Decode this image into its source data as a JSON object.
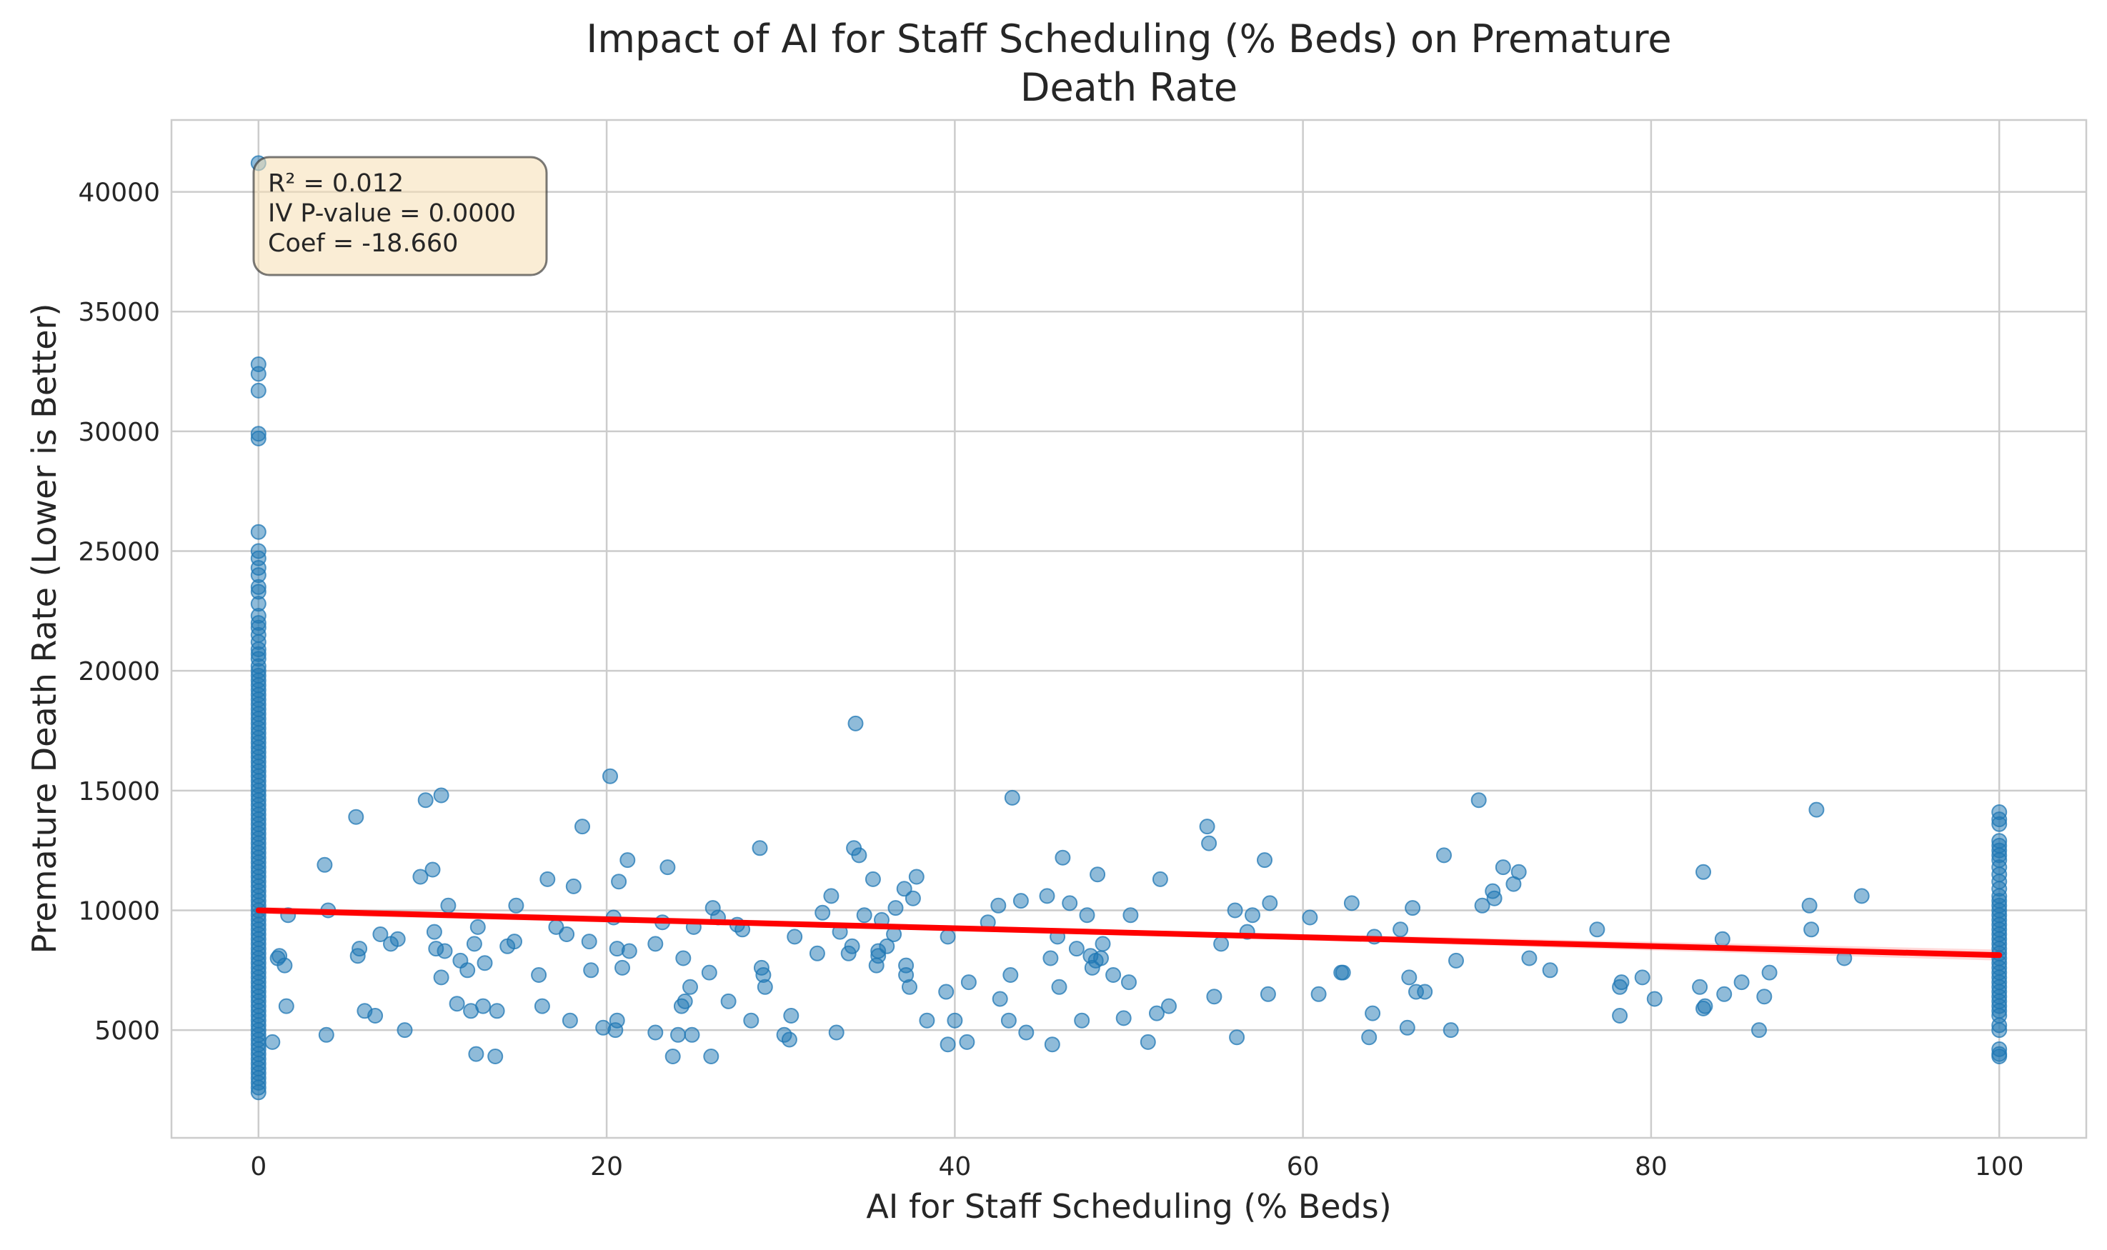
{
  "chart_data": {
    "type": "scatter",
    "title_lines": [
      "Impact of AI for Staff Scheduling (% Beds) on Premature",
      "Death Rate"
    ],
    "xlabel": "AI for Staff Scheduling (% Beds)",
    "ylabel": "Premature Death Rate (Lower is Better)",
    "xlim": [
      -5,
      105
    ],
    "ylim": [
      500,
      43000
    ],
    "xticks": [
      0,
      20,
      40,
      60,
      80,
      100
    ],
    "yticks": [
      5000,
      10000,
      15000,
      20000,
      25000,
      30000,
      35000,
      40000
    ],
    "grid": true,
    "stats_box": {
      "lines": [
        "R² = 0.012",
        "IV P-value = 0.0000",
        "Coef = -18.660"
      ],
      "placement": "top-left",
      "fill": "#f5deb3",
      "border": "#333333"
    },
    "colors": {
      "points": "#1f77b4",
      "fit_line": "#ff0000",
      "confidence_band": "#ff0000"
    },
    "fit_line": {
      "x": [
        0,
        100
      ],
      "y": [
        10000,
        8130
      ]
    },
    "confidence_band": {
      "x": [
        0,
        50,
        100
      ],
      "lower": [
        9850,
        8960,
        7900
      ],
      "upper": [
        10150,
        9180,
        8360
      ]
    },
    "series": [
      {
        "points_x0": [
          41200,
          32800,
          32400,
          31700,
          29900,
          29700,
          25800,
          25000,
          24700,
          24300,
          24000,
          23500,
          23300,
          22800,
          22300,
          22000,
          21800,
          21500,
          21200,
          20900,
          20700,
          20500,
          20200,
          20000,
          19800,
          19600,
          19400,
          19200,
          19000,
          18800,
          18600,
          18400,
          18200,
          18000,
          17800,
          17600,
          17400,
          17200,
          17000,
          16800,
          16600,
          16400,
          16200,
          16000,
          15800,
          15600,
          15400,
          15200,
          15000,
          14800,
          14600,
          14400,
          14200,
          14000,
          13800,
          13600,
          13400,
          13200,
          13000,
          12800,
          12600,
          12400,
          12200,
          12000,
          11800,
          11600,
          11400,
          11200,
          11000,
          10800,
          10600,
          10400,
          10200,
          10000,
          9800,
          9600,
          9400,
          9200,
          9000,
          8800,
          8600,
          8400,
          8200,
          8000,
          7800,
          7600,
          7400,
          7200,
          7000,
          6800,
          6600,
          6400,
          6200,
          6000,
          5800,
          5600,
          5400,
          5200,
          5000,
          4800,
          4600,
          4400,
          4200,
          4000,
          3800,
          3600,
          3400,
          3200,
          3000,
          2800,
          2600,
          2400
        ],
        "points_x100": [
          14100,
          13800,
          13600,
          12900,
          12700,
          12500,
          12300,
          12100,
          11800,
          11500,
          11200,
          10900,
          10600,
          10400,
          10200,
          10000,
          9800,
          9600,
          9400,
          9200,
          9000,
          8800,
          8600,
          8400,
          8200,
          8000,
          7800,
          7600,
          7400,
          7200,
          7000,
          6800,
          6600,
          6400,
          6200,
          6000,
          5800,
          5600,
          5200,
          5000,
          4200,
          4000,
          3900
        ],
        "points": [
          [
            0.8,
            4500
          ],
          [
            1.1,
            8000
          ],
          [
            1.2,
            8100
          ],
          [
            1.5,
            7700
          ],
          [
            1.6,
            6000
          ],
          [
            1.7,
            9800
          ],
          [
            3.8,
            11900
          ],
          [
            3.9,
            4800
          ],
          [
            4.0,
            10000
          ],
          [
            5.6,
            13900
          ],
          [
            5.7,
            8100
          ],
          [
            5.8,
            8400
          ],
          [
            6.1,
            5800
          ],
          [
            6.7,
            5600
          ],
          [
            7.0,
            9000
          ],
          [
            7.6,
            8600
          ],
          [
            8.0,
            8800
          ],
          [
            8.4,
            5000
          ],
          [
            9.3,
            11400
          ],
          [
            9.6,
            14600
          ],
          [
            10.0,
            11700
          ],
          [
            10.1,
            9100
          ],
          [
            10.2,
            8400
          ],
          [
            10.5,
            14800
          ],
          [
            10.5,
            7200
          ],
          [
            10.7,
            8300
          ],
          [
            10.9,
            10200
          ],
          [
            11.4,
            6100
          ],
          [
            11.6,
            7900
          ],
          [
            12.0,
            7500
          ],
          [
            12.2,
            5800
          ],
          [
            12.4,
            8600
          ],
          [
            12.5,
            4000
          ],
          [
            12.6,
            9300
          ],
          [
            12.9,
            6000
          ],
          [
            13.0,
            7800
          ],
          [
            13.6,
            3900
          ],
          [
            13.7,
            5800
          ],
          [
            14.3,
            8500
          ],
          [
            14.7,
            8700
          ],
          [
            14.8,
            10200
          ],
          [
            16.1,
            7300
          ],
          [
            16.3,
            6000
          ],
          [
            16.6,
            11300
          ],
          [
            17.1,
            9300
          ],
          [
            17.7,
            9000
          ],
          [
            17.9,
            5400
          ],
          [
            18.1,
            11000
          ],
          [
            18.6,
            13500
          ],
          [
            19.0,
            8700
          ],
          [
            19.1,
            7500
          ],
          [
            19.8,
            5100
          ],
          [
            20.2,
            15600
          ],
          [
            20.4,
            9700
          ],
          [
            20.5,
            5000
          ],
          [
            20.6,
            5400
          ],
          [
            20.6,
            8400
          ],
          [
            20.7,
            11200
          ],
          [
            20.9,
            7600
          ],
          [
            21.2,
            12100
          ],
          [
            21.3,
            8300
          ],
          [
            22.8,
            8600
          ],
          [
            22.8,
            4900
          ],
          [
            23.2,
            9500
          ],
          [
            23.5,
            11800
          ],
          [
            23.8,
            3900
          ],
          [
            24.1,
            4800
          ],
          [
            24.3,
            6000
          ],
          [
            24.4,
            8000
          ],
          [
            24.5,
            6200
          ],
          [
            24.8,
            6800
          ],
          [
            24.9,
            4800
          ],
          [
            25.0,
            9300
          ],
          [
            25.9,
            7400
          ],
          [
            26.0,
            3900
          ],
          [
            26.1,
            10100
          ],
          [
            26.4,
            9700
          ],
          [
            27.0,
            6200
          ],
          [
            27.5,
            9400
          ],
          [
            27.8,
            9200
          ],
          [
            28.3,
            5400
          ],
          [
            28.8,
            12600
          ],
          [
            28.9,
            7600
          ],
          [
            29.0,
            7300
          ],
          [
            29.1,
            6800
          ],
          [
            30.2,
            4800
          ],
          [
            30.5,
            4600
          ],
          [
            30.6,
            5600
          ],
          [
            30.8,
            8900
          ],
          [
            32.1,
            8200
          ],
          [
            32.4,
            9900
          ],
          [
            32.9,
            10600
          ],
          [
            33.2,
            4900
          ],
          [
            33.4,
            9100
          ],
          [
            33.9,
            8200
          ],
          [
            34.1,
            8500
          ],
          [
            34.2,
            12600
          ],
          [
            34.3,
            17800
          ],
          [
            34.5,
            12300
          ],
          [
            34.8,
            9800
          ],
          [
            35.3,
            11300
          ],
          [
            35.5,
            7700
          ],
          [
            35.6,
            8100
          ],
          [
            35.6,
            8300
          ],
          [
            35.8,
            9600
          ],
          [
            36.1,
            8500
          ],
          [
            36.5,
            9000
          ],
          [
            36.6,
            10100
          ],
          [
            37.1,
            10900
          ],
          [
            37.2,
            7700
          ],
          [
            37.2,
            7300
          ],
          [
            37.4,
            6800
          ],
          [
            37.6,
            10500
          ],
          [
            37.8,
            11400
          ],
          [
            38.4,
            5400
          ],
          [
            39.5,
            6600
          ],
          [
            39.6,
            4400
          ],
          [
            39.6,
            8900
          ],
          [
            40.0,
            5400
          ],
          [
            40.7,
            4500
          ],
          [
            40.8,
            7000
          ],
          [
            41.9,
            9500
          ],
          [
            42.5,
            10200
          ],
          [
            42.6,
            6300
          ],
          [
            43.1,
            5400
          ],
          [
            43.2,
            7300
          ],
          [
            43.3,
            14700
          ],
          [
            43.8,
            10400
          ],
          [
            44.1,
            4900
          ],
          [
            45.3,
            10600
          ],
          [
            45.5,
            8000
          ],
          [
            45.6,
            4400
          ],
          [
            45.9,
            8900
          ],
          [
            46.0,
            6800
          ],
          [
            46.2,
            12200
          ],
          [
            46.6,
            10300
          ],
          [
            47.0,
            8400
          ],
          [
            47.3,
            5400
          ],
          [
            47.6,
            9800
          ],
          [
            47.8,
            8100
          ],
          [
            47.9,
            7600
          ],
          [
            48.1,
            7900
          ],
          [
            48.2,
            11500
          ],
          [
            48.4,
            8000
          ],
          [
            48.5,
            8600
          ],
          [
            49.1,
            7300
          ],
          [
            49.7,
            5500
          ],
          [
            50.0,
            7000
          ],
          [
            50.1,
            9800
          ],
          [
            51.1,
            4500
          ],
          [
            51.6,
            5700
          ],
          [
            51.8,
            11300
          ],
          [
            52.3,
            6000
          ],
          [
            54.5,
            13500
          ],
          [
            54.6,
            12800
          ],
          [
            54.9,
            6400
          ],
          [
            55.3,
            8600
          ],
          [
            56.1,
            10000
          ],
          [
            56.2,
            4700
          ],
          [
            56.8,
            9100
          ],
          [
            57.1,
            9800
          ],
          [
            57.8,
            12100
          ],
          [
            58.0,
            6500
          ],
          [
            58.1,
            10300
          ],
          [
            60.4,
            9700
          ],
          [
            60.9,
            6500
          ],
          [
            62.2,
            7400
          ],
          [
            62.3,
            7400
          ],
          [
            62.8,
            10300
          ],
          [
            63.8,
            4700
          ],
          [
            64.0,
            5700
          ],
          [
            64.1,
            8900
          ],
          [
            65.6,
            9200
          ],
          [
            66.0,
            5100
          ],
          [
            66.1,
            7200
          ],
          [
            66.3,
            10100
          ],
          [
            66.5,
            6600
          ],
          [
            67.0,
            6600
          ],
          [
            68.1,
            12300
          ],
          [
            68.5,
            5000
          ],
          [
            68.8,
            7900
          ],
          [
            70.1,
            14600
          ],
          [
            70.3,
            10200
          ],
          [
            70.9,
            10800
          ],
          [
            71.0,
            10500
          ],
          [
            71.5,
            11800
          ],
          [
            72.1,
            11100
          ],
          [
            72.4,
            11600
          ],
          [
            73.0,
            8000
          ],
          [
            74.2,
            7500
          ],
          [
            76.9,
            9200
          ],
          [
            78.2,
            6800
          ],
          [
            78.2,
            5600
          ],
          [
            78.3,
            7000
          ],
          [
            79.5,
            7200
          ],
          [
            80.2,
            6300
          ],
          [
            82.8,
            6800
          ],
          [
            83.0,
            5900
          ],
          [
            83.0,
            11600
          ],
          [
            83.1,
            6000
          ],
          [
            84.1,
            8800
          ],
          [
            84.2,
            6500
          ],
          [
            85.2,
            7000
          ],
          [
            86.2,
            5000
          ],
          [
            86.5,
            6400
          ],
          [
            86.8,
            7400
          ],
          [
            89.1,
            10200
          ],
          [
            89.2,
            9200
          ],
          [
            89.5,
            14200
          ],
          [
            91.1,
            8000
          ],
          [
            92.1,
            10600
          ]
        ]
      }
    ]
  }
}
